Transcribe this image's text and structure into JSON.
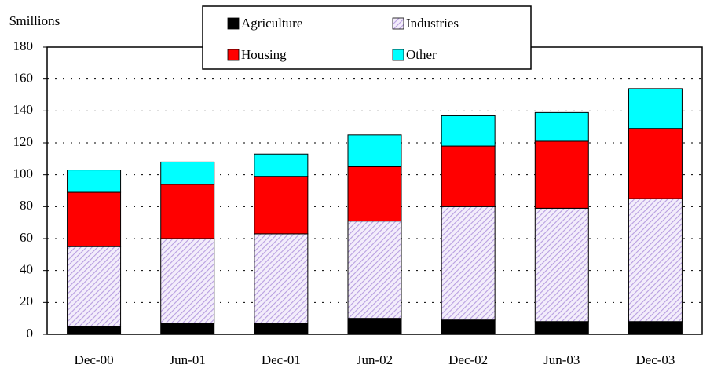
{
  "chart_data": {
    "type": "stacked_bar",
    "y_label": "$millions",
    "categories": [
      "Dec-00",
      "Jun-01",
      "Dec-01",
      "Jun-02",
      "Dec-02",
      "Jun-03",
      "Dec-03"
    ],
    "series": [
      {
        "name": "Agriculture",
        "color": "#000000",
        "values": [
          5,
          7,
          7,
          10,
          9,
          8,
          8
        ]
      },
      {
        "name": "Industries",
        "color": "#b79ee0",
        "pattern": "hatch",
        "values": [
          50,
          53,
          56,
          61,
          71,
          71,
          77
        ]
      },
      {
        "name": "Housing",
        "color": "#ff0000",
        "values": [
          34,
          34,
          36,
          34,
          38,
          42,
          44
        ]
      },
      {
        "name": "Other",
        "color": "#00ffff",
        "values": [
          14,
          14,
          14,
          20,
          19,
          18,
          25
        ]
      }
    ],
    "ylim": [
      0,
      180
    ],
    "yticks": [
      0,
      20,
      40,
      60,
      80,
      100,
      120,
      140,
      160,
      180
    ],
    "grid": true,
    "legend": "top"
  }
}
